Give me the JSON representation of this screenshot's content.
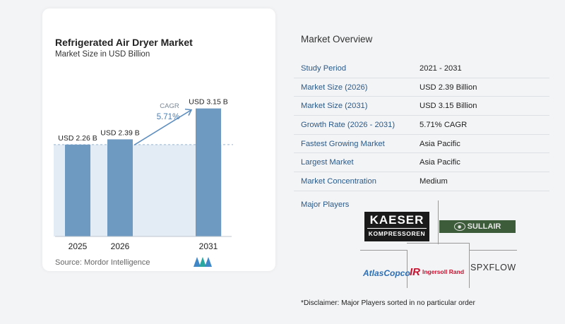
{
  "chart": {
    "title": "Refrigerated Air Dryer Market",
    "subtitle": "Market Size in USD Billion",
    "source": "Source:  Mordor Intelligence",
    "cagr_label": "CAGR",
    "cagr_value": "5.71%"
  },
  "chart_data": {
    "type": "bar",
    "title": "Refrigerated Air Dryer Market",
    "subtitle": "Market Size in USD Billion",
    "categories": [
      "2025",
      "2026",
      "2031"
    ],
    "values": [
      2.26,
      2.39,
      3.15
    ],
    "data_labels": [
      "USD 2.26 B",
      "USD 2.39 B",
      "USD 3.15 B"
    ],
    "ylim": [
      0,
      3.3
    ],
    "grid": false,
    "legend": "none",
    "annotation": "CAGR 5.71%",
    "colors": {
      "bar": "#6e9ac2",
      "area": "#e3ebf4",
      "dashed": "#9ab3cc",
      "arrow": "#5f8fbf",
      "cagr_text": "#4a7fb5"
    }
  },
  "overview": {
    "title": "Market Overview",
    "rows": [
      {
        "label": "Study Period",
        "value": "2021 - 2031"
      },
      {
        "label": "Market Size (2026)",
        "value": "USD 2.39 Billion"
      },
      {
        "label": "Market Size (2031)",
        "value": "USD 3.15 Billion"
      },
      {
        "label": "Growth Rate (2026 - 2031)",
        "value": "5.71% CAGR"
      },
      {
        "label": "Fastest Growing Market",
        "value": "Asia Pacific"
      },
      {
        "label": "Largest Market",
        "value": "Asia Pacific"
      },
      {
        "label": "Market Concentration",
        "value": "Medium"
      }
    ],
    "players_label": "Major Players",
    "players": {
      "kaeser_line1": "KAESER",
      "kaeser_line2": "KOMPRESSOREN",
      "sullair": "SULLAIR",
      "atlas": "AtlasCopco",
      "ir_badge": "IR",
      "ir_text": "Ingersoll Rand",
      "spx": "SPXFLOW"
    },
    "disclaimer": "*Disclaimer: Major Players sorted in no particular order"
  }
}
